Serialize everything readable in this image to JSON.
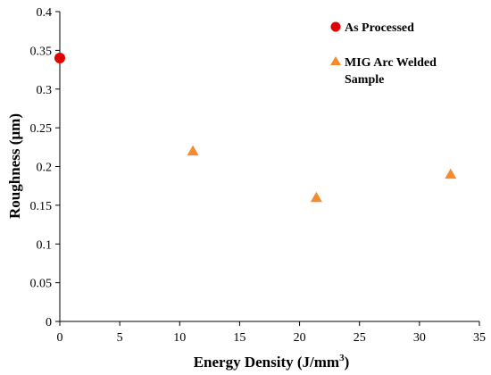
{
  "chart_data": {
    "type": "scatter",
    "xlabel": "Energy Density (J/mm",
    "xlabel_superscript": "3",
    "xlabel_suffix": ")",
    "ylabel": "Roughness (µm)",
    "xlim": [
      0,
      35
    ],
    "ylim": [
      0,
      0.4
    ],
    "x_ticks": [
      "0",
      "5",
      "10",
      "15",
      "20",
      "25",
      "30",
      "35"
    ],
    "y_ticks": [
      "0",
      "0.05",
      "0.1",
      "0.15",
      "0.2",
      "0.25",
      "0.3",
      "0.35",
      "0.4"
    ],
    "grid": false,
    "legend_position": "top-right",
    "series": [
      {
        "name": "As Processed",
        "marker": "circle",
        "color": "#e00000",
        "points": [
          {
            "x": 0,
            "y": 0.34
          }
        ]
      },
      {
        "name": "MIG Arc Welded Sample",
        "name_lines": [
          "MIG Arc Welded",
          "Sample"
        ],
        "marker": "triangle",
        "color": "#f58a2f",
        "points": [
          {
            "x": 11.1,
            "y": 0.22
          },
          {
            "x": 21.4,
            "y": 0.16
          },
          {
            "x": 32.6,
            "y": 0.19
          }
        ]
      }
    ]
  }
}
